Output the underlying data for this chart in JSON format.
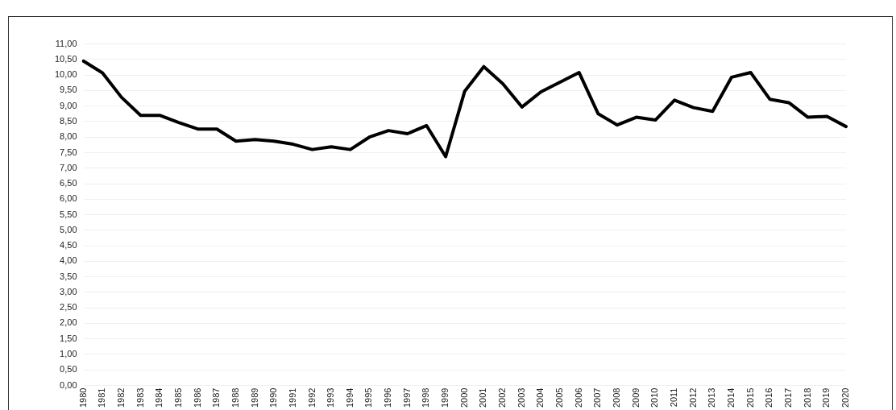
{
  "chart_data": {
    "type": "line",
    "categories": [
      "1980",
      "1981",
      "1982",
      "1983",
      "1984",
      "1985",
      "1986",
      "1987",
      "1988",
      "1989",
      "1990",
      "1991",
      "1992",
      "1993",
      "1994",
      "1995",
      "1996",
      "1997",
      "1998",
      "1999",
      "2000",
      "2001",
      "2002",
      "2003",
      "2004",
      "2005",
      "2006",
      "2007",
      "2008",
      "2009",
      "2010",
      "2011",
      "2012",
      "2013",
      "2014",
      "2015",
      "2016",
      "2017",
      "2018",
      "2019",
      "2020"
    ],
    "series": [
      {
        "color": "#000000",
        "values": [
          10.45,
          10.07,
          9.28,
          8.7,
          8.7,
          8.47,
          8.26,
          8.26,
          7.87,
          7.92,
          7.87,
          7.77,
          7.6,
          7.69,
          7.6,
          8.0,
          8.21,
          8.11,
          8.37,
          7.37,
          9.48,
          10.27,
          9.72,
          8.97,
          9.46,
          9.77,
          10.08,
          8.75,
          8.39,
          8.64,
          8.55,
          9.19,
          8.95,
          8.83,
          9.93,
          10.08,
          9.22,
          9.11,
          8.64,
          8.67,
          8.34
        ]
      }
    ],
    "ylim": [
      0,
      11
    ],
    "yticks": [
      {
        "value": 0,
        "label": "0,00"
      },
      {
        "value": 0.5,
        "label": "0,50"
      },
      {
        "value": 1,
        "label": "1,00"
      },
      {
        "value": 1.5,
        "label": "1,50"
      },
      {
        "value": 2,
        "label": "2,00"
      },
      {
        "value": 2.5,
        "label": "2,50"
      },
      {
        "value": 3,
        "label": "3,00"
      },
      {
        "value": 3.5,
        "label": "3,50"
      },
      {
        "value": 4,
        "label": "4,00"
      },
      {
        "value": 4.5,
        "label": "4,50"
      },
      {
        "value": 5,
        "label": "5,00"
      },
      {
        "value": 5.5,
        "label": "5,50"
      },
      {
        "value": 6,
        "label": "6,00"
      },
      {
        "value": 6.5,
        "label": "6,50"
      },
      {
        "value": 7,
        "label": "7,00"
      },
      {
        "value": 7.5,
        "label": "7,50"
      },
      {
        "value": 8,
        "label": "8,00"
      },
      {
        "value": 8.5,
        "label": "8,50"
      },
      {
        "value": 9,
        "label": "9,00"
      },
      {
        "value": 9.5,
        "label": "9,50"
      },
      {
        "value": 10,
        "label": "10,00"
      },
      {
        "value": 10.5,
        "label": "10,50"
      },
      {
        "value": 11,
        "label": "11,00"
      }
    ],
    "grid": "y",
    "marker": "none",
    "line_style": "solid",
    "legend": false
  }
}
